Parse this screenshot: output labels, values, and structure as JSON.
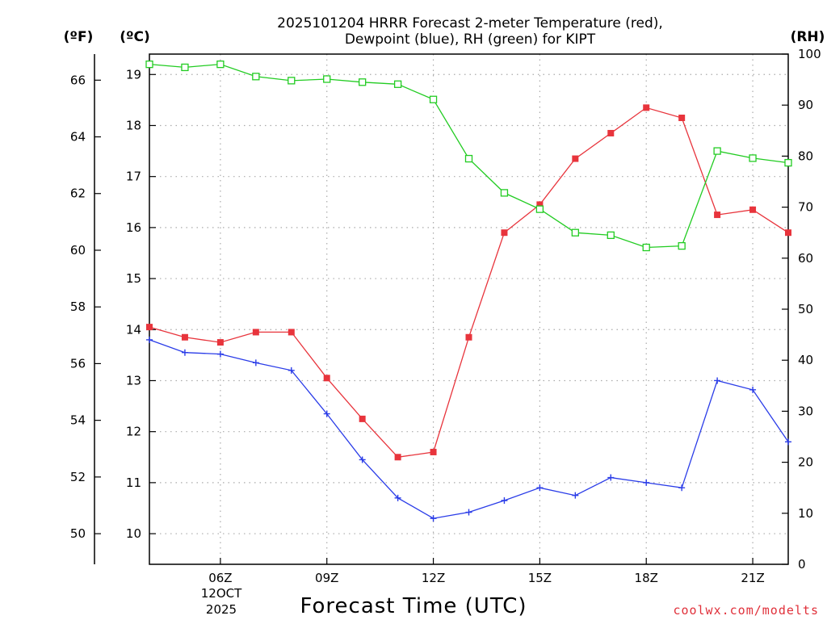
{
  "chart_data": {
    "type": "line",
    "title_line1": "2025101204 HRRR Forecast 2-meter Temperature (red),",
    "title_line2": "Dewpoint (blue), RH (green) for KIPT",
    "xlabel": "Forecast Time (UTC)",
    "credit": "coolwx.com/modelts",
    "unit_f": "(ºF)",
    "unit_c": "(ºC)",
    "unit_rh": "(RH)",
    "date_label_1": "12OCT",
    "date_label_2": "2025",
    "x_range": [
      4,
      22
    ],
    "x": [
      4,
      5,
      6,
      7,
      8,
      9,
      10,
      11,
      12,
      13,
      14,
      15,
      16,
      17,
      18,
      19,
      20,
      21,
      22
    ],
    "x_ticks": [
      {
        "hour": 6,
        "label": "06Z"
      },
      {
        "hour": 9,
        "label": "09Z"
      },
      {
        "hour": 12,
        "label": "12Z"
      },
      {
        "hour": 15,
        "label": "15Z"
      },
      {
        "hour": 18,
        "label": "18Z"
      },
      {
        "hour": 21,
        "label": "21Z"
      }
    ],
    "y_c_range": [
      9.4,
      19.4
    ],
    "y_c_ticks": [
      10,
      11,
      12,
      13,
      14,
      15,
      16,
      17,
      18,
      19
    ],
    "y_f_ticks": [
      50,
      52,
      54,
      56,
      58,
      60,
      62,
      64,
      66
    ],
    "y_rh_range": [
      0,
      100
    ],
    "y_rh_ticks": [
      0,
      10,
      20,
      30,
      40,
      50,
      60,
      70,
      80,
      90,
      100
    ],
    "series": [
      {
        "name": "Temperature",
        "unit": "C",
        "color": "#e8343c",
        "marker": "filled-square",
        "values": [
          14.05,
          13.85,
          13.75,
          13.95,
          13.95,
          13.05,
          12.25,
          11.5,
          11.6,
          13.85,
          15.9,
          16.45,
          17.35,
          17.85,
          18.35,
          18.15,
          16.25,
          16.35,
          15.9
        ]
      },
      {
        "name": "Dewpoint",
        "unit": "C",
        "color": "#2a3ce8",
        "marker": "plus",
        "values": [
          13.8,
          13.55,
          13.52,
          13.35,
          13.2,
          12.35,
          11.45,
          10.7,
          10.3,
          10.42,
          10.65,
          10.9,
          10.75,
          11.1,
          11.0,
          10.9,
          13.0,
          12.82,
          11.8
        ]
      },
      {
        "name": "RH",
        "unit": "%",
        "color": "#22cc22",
        "marker": "open-square",
        "values": [
          98,
          97.4,
          98,
          95.6,
          94.8,
          95.1,
          94.5,
          94.1,
          91.1,
          79.5,
          72.8,
          69.6,
          65,
          64.5,
          62.1,
          62.4,
          81,
          79.6,
          78.7
        ]
      }
    ]
  }
}
